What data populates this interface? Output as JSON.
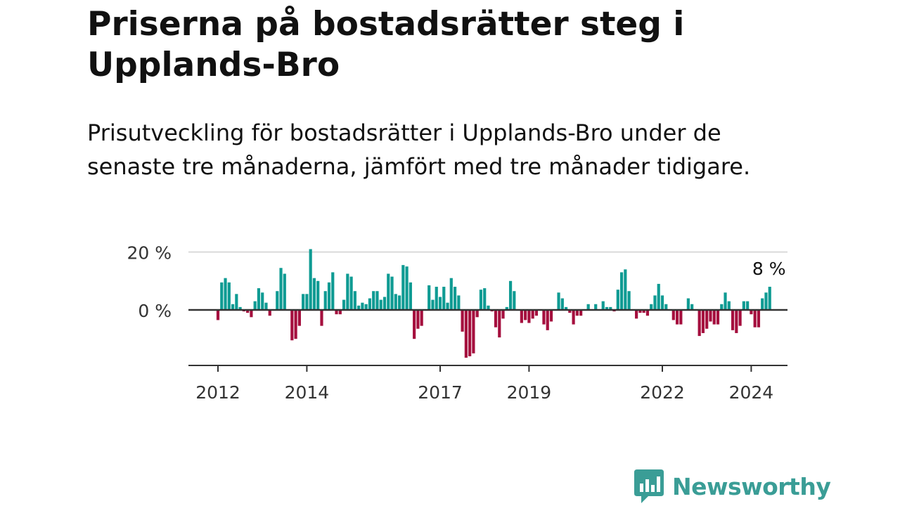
{
  "title": "Priserna på bostadsrätter steg i Upplands-Bro",
  "subtitle": "Prisutveckling för bostadsrätter i Upplands-Bro under de senaste tre månaderna, jämfört med tre månader tidigare.",
  "brand": {
    "name": "Newsworthy",
    "icon": "newsworthy-logo-icon",
    "color": "#3a9d96"
  },
  "colors": {
    "positive": "#0f9b93",
    "negative": "#a50f3e",
    "axis": "#333333",
    "grid": "#d9d9d9"
  },
  "chart_data": {
    "type": "bar",
    "title": "",
    "xlabel": "",
    "ylabel": "",
    "grid": true,
    "ylim": [
      -19,
      20
    ],
    "yticks": [
      {
        "value": 20,
        "label": "20 %"
      },
      {
        "value": 0,
        "label": "0 %"
      }
    ],
    "xticks": [
      {
        "value": 2012,
        "label": "2012"
      },
      {
        "value": 2014,
        "label": "2014"
      },
      {
        "value": 2017,
        "label": "2017"
      },
      {
        "value": 2019,
        "label": "2019"
      },
      {
        "value": 2022,
        "label": "2022"
      },
      {
        "value": 2024,
        "label": "2024"
      }
    ],
    "start": {
      "year": 2012,
      "month": 1
    },
    "values": [
      -3.5,
      9.5,
      11,
      9.5,
      2,
      5.5,
      1,
      -0.5,
      -1,
      -2.5,
      3,
      7.5,
      6,
      2.5,
      -2,
      0,
      6.5,
      14.5,
      12.5,
      0,
      -10.5,
      -10,
      -5.5,
      5.5,
      5.5,
      21,
      11,
      10,
      -5.5,
      6.5,
      9.5,
      13,
      -1.5,
      -1.5,
      3.5,
      12.5,
      11.5,
      6.5,
      1.5,
      2.5,
      2,
      4,
      6.5,
      6.5,
      3.5,
      4.5,
      12.5,
      11.5,
      5.5,
      5,
      15.5,
      15,
      9.5,
      -10,
      -6.5,
      -5.5,
      0,
      8.5,
      3.5,
      8,
      4.5,
      8,
      2.5,
      11,
      8,
      5,
      -7.5,
      -16.5,
      -16,
      -15,
      -2.5,
      7,
      7.5,
      1.5,
      -0.5,
      -6,
      -9.5,
      -3,
      1,
      10,
      6.5,
      0,
      -4.5,
      -3.5,
      -4.5,
      -3,
      -2,
      0,
      -5,
      -7,
      -4,
      0,
      6,
      4,
      1,
      -1,
      -5,
      -2,
      -2,
      0,
      2,
      0,
      2,
      0,
      3,
      1,
      1,
      -0.5,
      7,
      13,
      14,
      6.5,
      0,
      -3,
      -1,
      -1,
      -2,
      2,
      5,
      9,
      5,
      2,
      0,
      -3.5,
      -5,
      -5,
      0,
      4,
      2,
      0,
      -9,
      -8,
      -6.5,
      -4,
      -5,
      -5,
      2,
      6,
      3,
      -7,
      -8,
      -5.5,
      3,
      3,
      -1.5,
      -6,
      -6,
      4,
      6,
      8
    ],
    "annotation": {
      "label": "8 %",
      "value": 8
    }
  }
}
